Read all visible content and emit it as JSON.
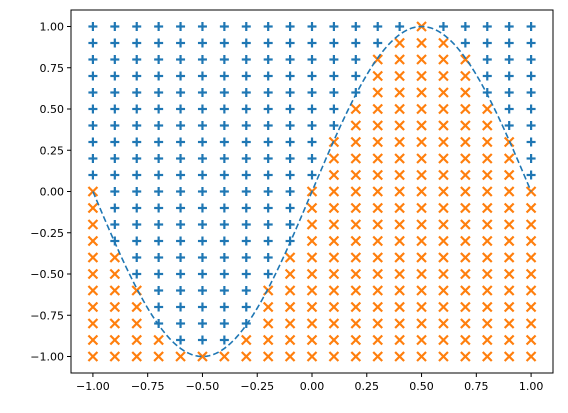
{
  "chart_data": {
    "type": "scatter",
    "title": "",
    "xlabel": "",
    "ylabel": "",
    "xlim": [
      -1.1,
      1.1
    ],
    "ylim": [
      -1.1,
      1.1
    ],
    "x_ticks": [
      "−1.00",
      "−0.75",
      "−0.50",
      "−0.25",
      "0.00",
      "0.25",
      "0.50",
      "0.75",
      "1.00"
    ],
    "y_ticks": [
      "−1.00",
      "−0.75",
      "−0.50",
      "−0.25",
      "0.00",
      "0.25",
      "0.50",
      "0.75",
      "1.00"
    ],
    "x_tick_values": [
      -1,
      -0.75,
      -0.5,
      -0.25,
      0,
      0.25,
      0.5,
      0.75,
      1
    ],
    "y_tick_values": [
      -1,
      -0.75,
      -0.5,
      -0.25,
      0,
      0.25,
      0.5,
      0.75,
      1
    ],
    "grid": false,
    "legend": "none",
    "points": {
      "grid_x": [
        -1.0,
        1.0,
        21
      ],
      "grid_y": [
        -1.0,
        1.0,
        21
      ],
      "rule": "class A ('+') where y > sin(pi*x); class B ('x') where y <= sin(pi*x)"
    },
    "series": [
      {
        "marker": "plus",
        "color": "#1f77b4"
      },
      {
        "marker": "x",
        "color": "#ff7f0e"
      }
    ],
    "boundary": {
      "function": "sin(pi*x)",
      "x_range": [
        -1.0,
        1.0
      ],
      "style": "dashed",
      "color": "#1f77b4"
    }
  }
}
